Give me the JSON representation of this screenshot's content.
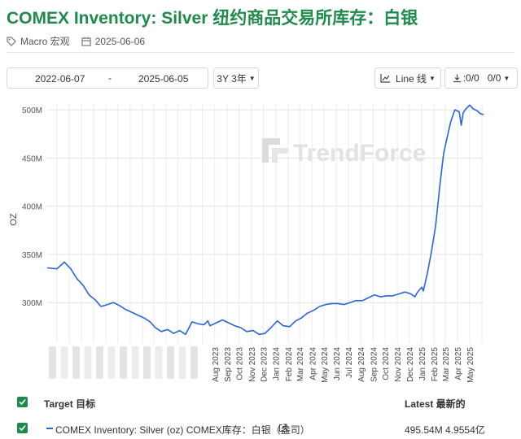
{
  "page": {
    "title": "COMEX Inventory: Silver 纽约商品交易所库存：白银",
    "category": "Macro 宏观",
    "date": "2025-06-06"
  },
  "controls": {
    "start_date": "2022-06-07",
    "end_date": "2025-06-05",
    "range_label": "3Y 3年",
    "chart_type_label": "Line 线",
    "export_label": ":0/0",
    "export_count": "0/0"
  },
  "legend": {
    "target_header": "Target 目标",
    "latest_header": "Latest 最新的",
    "rows": [
      {
        "label": "COMEX Inventory: Silver (oz) COMEX库存：白银（盎司）",
        "latest": "495.54M 4.9554亿",
        "color": "#2b63d9"
      }
    ]
  },
  "watermark": "TrendForce",
  "chart_data": {
    "type": "line",
    "ylabel": "OZ",
    "ylim": [
      258,
      506
    ],
    "y_ticks": [
      "300M",
      "350M",
      "400M",
      "450M",
      "500M"
    ],
    "x_tick_labels": [
      "Aug 2023",
      "Sep 2023",
      "Oct 2023",
      "Nov 2023",
      "Dec 2023",
      "Jan 2024",
      "Feb 2024",
      "Mar 2024",
      "Apr 2024",
      "May 2024",
      "Jun 2024",
      "Jul 2024",
      "Aug 2024",
      "Sep 2024",
      "Oct 2024",
      "Nov 2024",
      "Dec 2024",
      "Jan 2025",
      "Feb 2025",
      "Mar 2025",
      "Apr 2025",
      "May 2025"
    ],
    "grid": true,
    "series": [
      {
        "color": "#2b63d9",
        "x": [
          "2022-06-07",
          "2022-07-01",
          "2022-07-20",
          "2022-08-05",
          "2022-08-20",
          "2022-09-05",
          "2022-09-20",
          "2022-10-05",
          "2022-10-20",
          "2022-11-05",
          "2022-11-20",
          "2022-12-05",
          "2022-12-20",
          "2023-01-05",
          "2023-01-20",
          "2023-02-05",
          "2023-02-20",
          "2023-03-05",
          "2023-03-20",
          "2023-04-05",
          "2023-04-20",
          "2023-05-05",
          "2023-05-20",
          "2023-06-05",
          "2023-06-20",
          "2023-07-05",
          "2023-07-15",
          "2023-07-20",
          "2023-08-05",
          "2023-08-20",
          "2023-09-05",
          "2023-09-20",
          "2023-10-05",
          "2023-10-20",
          "2023-11-05",
          "2023-11-20",
          "2023-12-05",
          "2023-12-20",
          "2024-01-05",
          "2024-01-20",
          "2024-02-05",
          "2024-02-20",
          "2024-03-05",
          "2024-03-20",
          "2024-04-05",
          "2024-04-20",
          "2024-05-05",
          "2024-05-20",
          "2024-06-05",
          "2024-06-20",
          "2024-07-05",
          "2024-07-20",
          "2024-08-05",
          "2024-08-15",
          "2024-08-25",
          "2024-09-05",
          "2024-09-20",
          "2024-10-05",
          "2024-10-20",
          "2024-11-05",
          "2024-11-20",
          "2024-12-05",
          "2024-12-15",
          "2024-12-20",
          "2025-01-01",
          "2025-01-05",
          "2025-01-15",
          "2025-01-25",
          "2025-02-05",
          "2025-02-15",
          "2025-02-25",
          "2025-03-05",
          "2025-03-15",
          "2025-03-25",
          "2025-04-05",
          "2025-04-10",
          "2025-04-15",
          "2025-04-20",
          "2025-05-01",
          "2025-05-10",
          "2025-05-20",
          "2025-05-28",
          "2025-06-05"
        ],
        "y": [
          336,
          335,
          342,
          335,
          325,
          318,
          308,
          303,
          296,
          298,
          300,
          297,
          293,
          290,
          287,
          284,
          280,
          274,
          270,
          272,
          268,
          271,
          267,
          280,
          278,
          277,
          281,
          276,
          279,
          282,
          279,
          276,
          274,
          270,
          271,
          267,
          268,
          274,
          281,
          276,
          275,
          281,
          284,
          289,
          292,
          296,
          298,
          299,
          299,
          298,
          300,
          302,
          302,
          304,
          306,
          308,
          306,
          307,
          307,
          309,
          311,
          309,
          306,
          310,
          316,
          312,
          330,
          352,
          380,
          420,
          455,
          470,
          488,
          500,
          498,
          484,
          497,
          500,
          505,
          501,
          499,
          496,
          495
        ]
      }
    ]
  }
}
